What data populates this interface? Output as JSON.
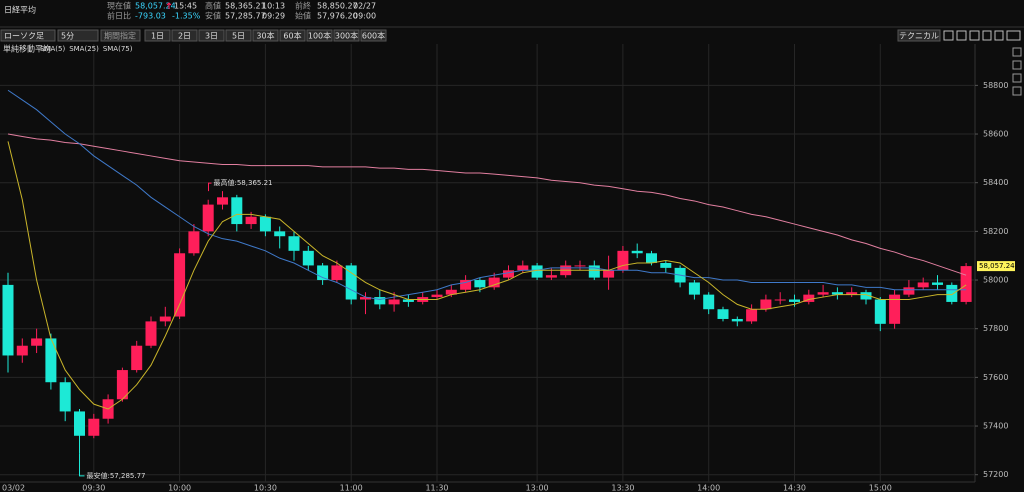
{
  "header": {
    "title": "日経平均",
    "quote": [
      {
        "label": "現在値",
        "value": "58,057.24",
        "sub": "15:45"
      },
      {
        "label": "高値",
        "value": "58,365.21",
        "sub": "10:13"
      },
      {
        "label": "前終",
        "value": "58,850.27",
        "sub": "02/27"
      },
      {
        "label": "前日比",
        "value": "-793.03",
        "sub": "-1.35%"
      },
      {
        "label": "安値",
        "value": "57,285.77",
        "sub": "09:29"
      },
      {
        "label": "始値",
        "value": "57,976.20",
        "sub": "09:00"
      }
    ]
  },
  "toolbar": {
    "chart_type": "ローソク足",
    "interval": "5分",
    "range": "期間指定",
    "periods": [
      "1日",
      "2日",
      "3日",
      "5日",
      "30本",
      "60本",
      "100本",
      "300本",
      "600本"
    ],
    "technical": "テクニカル"
  },
  "chart_data": {
    "type": "candlestick",
    "legend_title": "単純移動平均",
    "up_color": "#ff1f5a",
    "down_color": "#1de9d6",
    "categories": [
      "03/02",
      null,
      null,
      null,
      null,
      null,
      "09:30",
      null,
      null,
      null,
      null,
      null,
      "10:00",
      null,
      null,
      null,
      null,
      null,
      "10:30",
      null,
      null,
      null,
      null,
      null,
      "11:00",
      null,
      null,
      null,
      null,
      null,
      "11:30",
      null,
      null,
      null,
      null,
      null,
      null,
      "13:00",
      null,
      null,
      null,
      null,
      null,
      "13:30",
      null,
      null,
      null,
      null,
      null,
      "14:00",
      null,
      null,
      null,
      null,
      null,
      "14:30",
      null,
      null,
      null,
      null,
      null,
      "15:00",
      null,
      null,
      null,
      null,
      null,
      null
    ],
    "open": [
      57980,
      57690,
      57730,
      57760,
      57580,
      57460,
      57360,
      57430,
      57510,
      57630,
      57730,
      57830,
      57850,
      58110,
      58200,
      58310,
      58340,
      58230,
      58260,
      58200,
      58180,
      58120,
      58060,
      58000,
      58060,
      57920,
      57930,
      57900,
      57920,
      57910,
      57930,
      57940,
      57960,
      58000,
      57970,
      58010,
      58040,
      58060,
      58010,
      58020,
      58060,
      58060,
      58010,
      58040,
      58120,
      58110,
      58070,
      58050,
      57990,
      57940,
      57880,
      57840,
      57830,
      57880,
      57920,
      57920,
      57910,
      57940,
      57950,
      57940,
      57950,
      57920,
      57820,
      57940,
      57970,
      57990,
      57980,
      57910
    ],
    "high": [
      58030,
      57760,
      57800,
      57780,
      57600,
      57470,
      57450,
      57530,
      57640,
      57750,
      57850,
      57890,
      58130,
      58230,
      58330,
      58365.21,
      58350,
      58280,
      58270,
      58220,
      58200,
      58140,
      58070,
      58080,
      58070,
      57950,
      57960,
      57950,
      57940,
      57950,
      57960,
      57980,
      58020,
      58010,
      58030,
      58060,
      58080,
      58070,
      58050,
      58080,
      58080,
      58080,
      58100,
      58140,
      58150,
      58120,
      58080,
      58060,
      58000,
      57950,
      57890,
      57850,
      57900,
      57940,
      57950,
      57940,
      57960,
      57980,
      57970,
      57970,
      57960,
      57930,
      57960,
      58000,
      58010,
      58020,
      57990,
      58070
    ],
    "low": [
      57620,
      57660,
      57700,
      57550,
      57420,
      57285.77,
      57350,
      57410,
      57500,
      57620,
      57720,
      57810,
      57840,
      58100,
      58180,
      58290,
      58200,
      58210,
      58180,
      58130,
      58080,
      58040,
      57980,
      57990,
      57900,
      57860,
      57880,
      57870,
      57890,
      57900,
      57920,
      57930,
      57950,
      57950,
      57960,
      58000,
      58030,
      58000,
      58000,
      58010,
      58040,
      58000,
      57960,
      58030,
      58090,
      58060,
      58030,
      57970,
      57920,
      57860,
      57830,
      57810,
      57820,
      57870,
      57900,
      57890,
      57900,
      57930,
      57920,
      57930,
      57900,
      57790,
      57800,
      57930,
      57960,
      57960,
      57900,
      57900
    ],
    "close": [
      57690,
      57730,
      57760,
      57580,
      57460,
      57360,
      57430,
      57510,
      57630,
      57730,
      57830,
      57850,
      58110,
      58200,
      58310,
      58340,
      58230,
      58260,
      58200,
      58180,
      58120,
      58060,
      58000,
      58060,
      57920,
      57930,
      57900,
      57920,
      57910,
      57930,
      57940,
      57960,
      58000,
      57970,
      58010,
      58040,
      58060,
      58010,
      58020,
      58060,
      58060,
      58010,
      58040,
      58120,
      58110,
      58070,
      58050,
      57990,
      57940,
      57880,
      57840,
      57830,
      57880,
      57920,
      57920,
      57910,
      57940,
      57950,
      57940,
      57950,
      57920,
      57820,
      57940,
      57970,
      57990,
      57980,
      57910,
      58057.24
    ],
    "series": [
      {
        "name": "SMA(5)",
        "color": "#c9b52a",
        "values": [
          58570,
          58330,
          58000,
          57760,
          57630,
          57550,
          57490,
          57470,
          57510,
          57570,
          57650,
          57770,
          57900,
          58040,
          58160,
          58240,
          58270,
          58270,
          58260,
          58250,
          58200,
          58150,
          58100,
          58070,
          58030,
          57990,
          57960,
          57940,
          57920,
          57920,
          57920,
          57940,
          57950,
          57960,
          57980,
          58000,
          58030,
          58040,
          58040,
          58040,
          58040,
          58040,
          58040,
          58060,
          58070,
          58070,
          58080,
          58070,
          58030,
          57990,
          57940,
          57900,
          57880,
          57880,
          57890,
          57900,
          57920,
          57930,
          57940,
          57940,
          57940,
          57920,
          57920,
          57920,
          57930,
          57940,
          57940,
          57980
        ]
      },
      {
        "name": "SMA(25)",
        "color": "#3f79c9",
        "values": [
          58780,
          58740,
          58700,
          58650,
          58600,
          58560,
          58510,
          58470,
          58430,
          58390,
          58340,
          58300,
          58260,
          58220,
          58190,
          58170,
          58160,
          58140,
          58120,
          58090,
          58070,
          58040,
          58010,
          57990,
          57960,
          57930,
          57920,
          57930,
          57940,
          57950,
          57960,
          57980,
          57990,
          58010,
          58020,
          58030,
          58040,
          58040,
          58050,
          58050,
          58050,
          58050,
          58040,
          58040,
          58040,
          58030,
          58030,
          58020,
          58010,
          58010,
          58000,
          58000,
          57990,
          57990,
          57990,
          57990,
          57990,
          57990,
          57980,
          57980,
          57970,
          57970,
          57960,
          57960,
          57960,
          57960,
          57960,
          57960
        ]
      },
      {
        "name": "SMA(75)",
        "color": "#e27fa0",
        "values": [
          58600,
          58590,
          58580,
          58575,
          58565,
          58560,
          58550,
          58540,
          58530,
          58520,
          58510,
          58500,
          58490,
          58485,
          58480,
          58475,
          58475,
          58470,
          58470,
          58470,
          58470,
          58470,
          58465,
          58465,
          58465,
          58465,
          58460,
          58460,
          58455,
          58455,
          58450,
          58445,
          58440,
          58440,
          58435,
          58430,
          58425,
          58420,
          58410,
          58405,
          58400,
          58390,
          58385,
          58375,
          58365,
          58360,
          58350,
          58335,
          58325,
          58310,
          58300,
          58285,
          58270,
          58260,
          58245,
          58230,
          58215,
          58200,
          58185,
          58165,
          58150,
          58130,
          58115,
          58095,
          58080,
          58060,
          58040,
          58020
        ]
      }
    ],
    "annotations": [
      {
        "text": "最高値:58,365.21"
      },
      {
        "text": "最安値:57,285.77"
      }
    ],
    "ylim": [
      57170,
      58970
    ],
    "yticks": [
      57200,
      57400,
      57600,
      57800,
      58000,
      58200,
      58400,
      58600,
      58800
    ],
    "grid": true
  }
}
